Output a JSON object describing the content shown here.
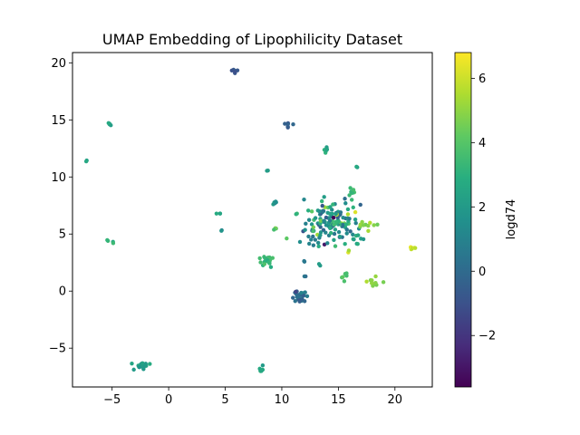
{
  "chart_data": {
    "type": "scatter",
    "title": "UMAP Embedding of Lipophilicity Dataset",
    "xlabel": "",
    "ylabel": "",
    "xlim": [
      -8.5,
      23.3
    ],
    "ylim": [
      -8.4,
      20.9
    ],
    "x_ticks": [
      -5,
      0,
      5,
      10,
      15,
      20
    ],
    "y_ticks": [
      -5,
      0,
      5,
      10,
      15,
      20
    ],
    "x_tick_labels": [
      "−5",
      "0",
      "5",
      "10",
      "15",
      "20"
    ],
    "y_tick_labels": [
      "−5",
      "0",
      "5",
      "10",
      "15",
      "20"
    ],
    "grid": false,
    "colormap": "viridis",
    "colorbar": {
      "label": "logd74",
      "range": [
        -3.6,
        6.8
      ],
      "ticks": [
        -2,
        0,
        2,
        4,
        6
      ],
      "tick_labels": [
        "−2",
        "0",
        "2",
        "4",
        "6"
      ]
    },
    "clusters": [
      {
        "cx": 5.8,
        "cy": 19.3,
        "sx": 0.2,
        "sy": 0.1,
        "n": 6,
        "c": -0.6
      },
      {
        "cx": -5.2,
        "cy": 14.6,
        "sx": 0.1,
        "sy": 0.1,
        "n": 4,
        "c": 2.2
      },
      {
        "cx": -7.3,
        "cy": 11.4,
        "sx": 0.05,
        "sy": 0.05,
        "n": 2,
        "c": 2.4
      },
      {
        "cx": 10.6,
        "cy": 14.6,
        "sx": 0.2,
        "sy": 0.1,
        "n": 6,
        "c": -0.3
      },
      {
        "cx": 13.9,
        "cy": 12.3,
        "sx": 0.1,
        "sy": 0.2,
        "n": 5,
        "c": 2.8
      },
      {
        "cx": 16.7,
        "cy": 10.9,
        "sx": 0.05,
        "sy": 0.05,
        "n": 2,
        "c": 2.5
      },
      {
        "cx": 8.7,
        "cy": 10.6,
        "sx": 0.05,
        "sy": 0.05,
        "n": 2,
        "c": 1.6
      },
      {
        "cx": 4.4,
        "cy": 6.8,
        "sx": 0.1,
        "sy": 0.05,
        "n": 3,
        "c": 2.2
      },
      {
        "cx": 4.7,
        "cy": 5.3,
        "sx": 0.05,
        "sy": 0.05,
        "n": 2,
        "c": 1.4
      },
      {
        "cx": -5.4,
        "cy": 4.5,
        "sx": 0.05,
        "sy": 0.05,
        "n": 2,
        "c": 3.6
      },
      {
        "cx": -4.9,
        "cy": 4.3,
        "sx": 0.05,
        "sy": 0.05,
        "n": 2,
        "c": 3.0
      },
      {
        "cx": 9.2,
        "cy": 7.7,
        "sx": 0.2,
        "sy": 0.1,
        "n": 6,
        "c": 1.6
      },
      {
        "cx": 9.4,
        "cy": 5.5,
        "sx": 0.1,
        "sy": 0.1,
        "n": 3,
        "c": 4.0
      },
      {
        "cx": 11.3,
        "cy": 6.7,
        "sx": 0.05,
        "sy": 0.05,
        "n": 2,
        "c": 3.3
      },
      {
        "cx": 14.5,
        "cy": 6.0,
        "sx": 1.2,
        "sy": 0.9,
        "n": 130,
        "c": 1.8,
        "cs": 1.6
      },
      {
        "cx": 16.2,
        "cy": 8.5,
        "sx": 0.3,
        "sy": 0.4,
        "n": 8,
        "c": 3.5
      },
      {
        "cx": 17.8,
        "cy": 5.8,
        "sx": 0.4,
        "sy": 0.2,
        "n": 10,
        "c": 4.8
      },
      {
        "cx": 12.5,
        "cy": 4.5,
        "sx": 0.5,
        "sy": 0.3,
        "n": 8,
        "c": 0.8
      },
      {
        "cx": 16.5,
        "cy": 4.5,
        "sx": 0.4,
        "sy": 0.2,
        "n": 8,
        "c": 2.2
      },
      {
        "cx": 16.0,
        "cy": 3.5,
        "sx": 0.1,
        "sy": 0.1,
        "n": 2,
        "c": 5.8
      },
      {
        "cx": 8.6,
        "cy": 2.7,
        "sx": 0.3,
        "sy": 0.3,
        "n": 20,
        "c": 3.4
      },
      {
        "cx": 12.0,
        "cy": 2.6,
        "sx": 0.05,
        "sy": 0.1,
        "n": 2,
        "c": 0.5
      },
      {
        "cx": 13.3,
        "cy": 2.3,
        "sx": 0.1,
        "sy": 0.1,
        "n": 2,
        "c": 2.0
      },
      {
        "cx": 12.1,
        "cy": 1.3,
        "sx": 0.05,
        "sy": 0.1,
        "n": 2,
        "c": 0.3
      },
      {
        "cx": 15.5,
        "cy": 1.5,
        "sx": 0.2,
        "sy": 0.3,
        "n": 6,
        "c": 3.8
      },
      {
        "cx": 18.0,
        "cy": 0.9,
        "sx": 0.3,
        "sy": 0.3,
        "n": 10,
        "c": 4.8
      },
      {
        "cx": 11.5,
        "cy": -0.5,
        "sx": 0.35,
        "sy": 0.25,
        "n": 28,
        "c": 0.1,
        "cs": 0.6
      },
      {
        "cx": 21.5,
        "cy": 3.7,
        "sx": 0.3,
        "sy": 0.1,
        "n": 6,
        "c": 5.9
      },
      {
        "cx": -2.4,
        "cy": -6.5,
        "sx": 0.3,
        "sy": 0.15,
        "n": 22,
        "c": 2.3
      },
      {
        "cx": 8.2,
        "cy": -6.8,
        "sx": 0.1,
        "sy": 0.15,
        "n": 6,
        "c": 2.6
      }
    ]
  }
}
